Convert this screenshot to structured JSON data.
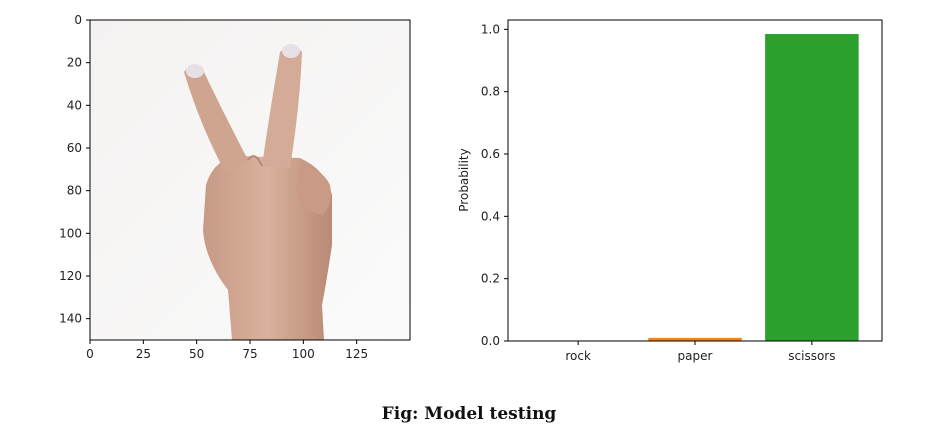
{
  "caption": "Fig: Model testing",
  "chart_data": [
    {
      "type": "image",
      "content": "hand showing two fingers (scissors gesture)",
      "xticks": [
        "0",
        "25",
        "50",
        "75",
        "100",
        "125"
      ],
      "yticks": [
        "0",
        "20",
        "40",
        "60",
        "80",
        "100",
        "120",
        "140"
      ],
      "xlim": [
        0,
        150
      ],
      "ylim": [
        150,
        0
      ]
    },
    {
      "type": "bar",
      "categories": [
        "rock",
        "paper",
        "scissors"
      ],
      "values": [
        0.0,
        0.01,
        0.985
      ],
      "colors": [
        "#1f77b4",
        "#ff7f0e",
        "#2ca02c"
      ],
      "title": "",
      "xlabel": "",
      "ylabel": "Probability",
      "ylim": [
        0,
        1.03
      ],
      "yticks": [
        "0.0",
        "0.2",
        "0.4",
        "0.6",
        "0.8",
        "1.0"
      ]
    }
  ]
}
